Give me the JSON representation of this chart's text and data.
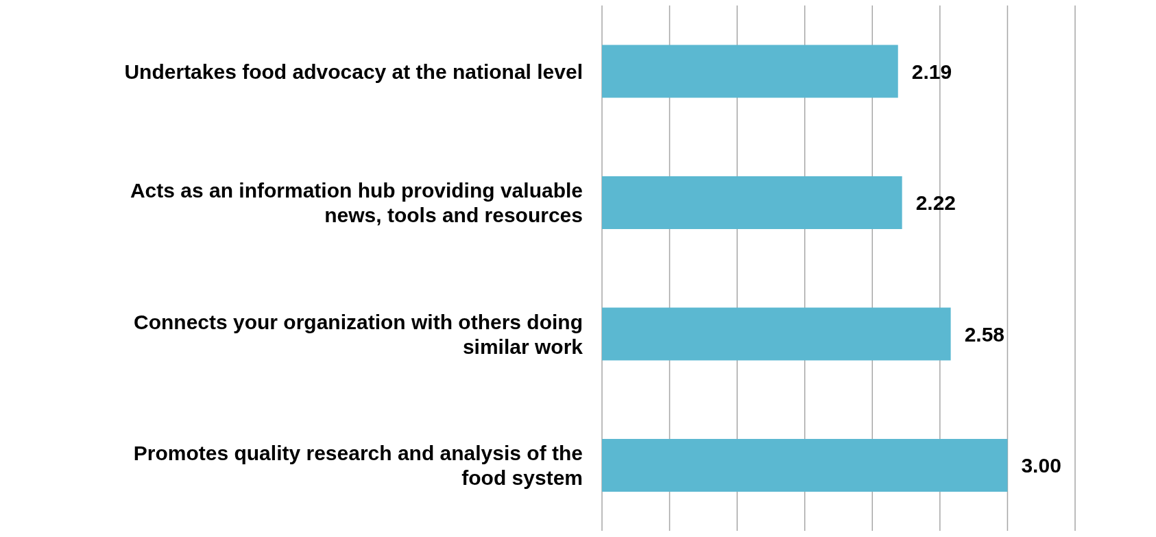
{
  "chart_data": {
    "type": "bar",
    "orientation": "horizontal",
    "categories": [
      "Undertakes food advocacy at the national level",
      "Acts as an information hub providing valuable news, tools and resources",
      "Connects your organization with others doing similar work",
      "Promotes quality research and analysis of the food system"
    ],
    "values": [
      2.19,
      2.22,
      2.58,
      3.0
    ],
    "value_labels": [
      "2.19",
      "2.22",
      "2.58",
      "3.00"
    ],
    "color": "#5bb8d1",
    "xlim": [
      0,
      3.5
    ],
    "tick_labels": "y",
    "grid": "x",
    "legend": false
  }
}
